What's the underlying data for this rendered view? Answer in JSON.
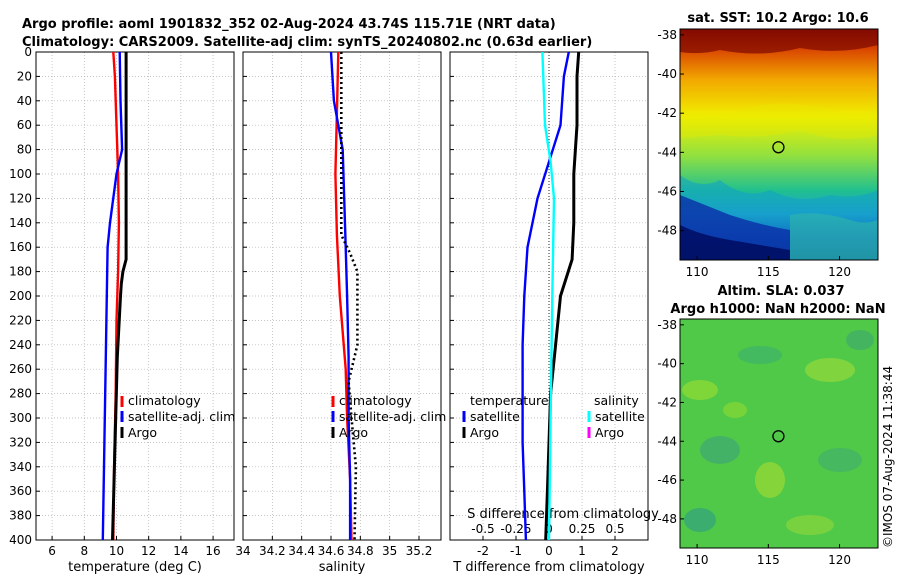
{
  "header": {
    "line1": "Argo profile: aoml 1901832_352 02-Aug-2024 43.74S 115.71E (NRT data)",
    "line2": "Climatology: CARS2009. Satellite-adj clim: synTS_20240802.nc (0.63d earlier)"
  },
  "timestamp": "©IMOS 07-Aug-2024 11:38:44",
  "colors": {
    "climatology": "#ff0000",
    "satellite": "#0000ff",
    "argo": "#000000",
    "satellite_salinity": "#00ffff",
    "argo_salinity": "#ff00ff"
  },
  "chart_data": [
    {
      "type": "line",
      "title": "",
      "xlabel": "temperature (deg C)",
      "ylabel": "",
      "xlim": [
        5,
        17.3
      ],
      "ylim": [
        400,
        0
      ],
      "xticks": [
        6,
        8,
        10,
        12,
        14,
        16
      ],
      "yticks": [
        0,
        20,
        40,
        60,
        80,
        100,
        120,
        140,
        160,
        180,
        200,
        220,
        240,
        260,
        280,
        300,
        320,
        340,
        360,
        380,
        400
      ],
      "legend": [
        "climatology",
        "satellite-adj. clim",
        "Argo"
      ],
      "series": [
        {
          "name": "climatology",
          "style": "solid",
          "depth": [
            0,
            20,
            60,
            100,
            140,
            180,
            220,
            280,
            340,
            400
          ],
          "values": [
            9.8,
            9.9,
            10.0,
            10.1,
            10.15,
            10.1,
            10.0,
            9.95,
            9.85,
            9.8
          ]
        },
        {
          "name": "satellite-adj. clim",
          "style": "solid",
          "depth": [
            0,
            40,
            80,
            100,
            140,
            160,
            200,
            240,
            280,
            320,
            360,
            400
          ],
          "values": [
            10.2,
            10.25,
            10.35,
            10.0,
            9.6,
            9.45,
            9.4,
            9.35,
            9.3,
            9.25,
            9.2,
            9.15
          ]
        },
        {
          "name": "Argo",
          "style": "thick",
          "depth": [
            0,
            20,
            100,
            170,
            180,
            190,
            200,
            250,
            300,
            350,
            400
          ],
          "values": [
            10.6,
            10.6,
            10.6,
            10.6,
            10.4,
            10.3,
            10.25,
            10.05,
            9.95,
            9.85,
            9.75
          ]
        }
      ]
    },
    {
      "type": "line",
      "title": "",
      "xlabel": "salinity",
      "ylabel": "",
      "xlim": [
        34.0,
        35.35
      ],
      "ylim": [
        400,
        0
      ],
      "xticks": [
        34,
        34.2,
        34.4,
        34.6,
        34.8,
        35,
        35.2
      ],
      "yticks": [
        0,
        20,
        40,
        60,
        80,
        100,
        120,
        140,
        160,
        180,
        200,
        220,
        240,
        260,
        280,
        300,
        320,
        340,
        360,
        380,
        400
      ],
      "legend": [
        "climatology",
        "satellite-adj. clim",
        "Argo"
      ],
      "series": [
        {
          "name": "climatology",
          "style": "solid",
          "depth": [
            0,
            50,
            100,
            150,
            200,
            260,
            300,
            350,
            400
          ],
          "values": [
            34.65,
            34.64,
            34.63,
            34.64,
            34.66,
            34.7,
            34.71,
            34.73,
            34.74
          ]
        },
        {
          "name": "satellite-adj. clim",
          "style": "solid",
          "depth": [
            0,
            40,
            80,
            120,
            160,
            200,
            250,
            300,
            350,
            400
          ],
          "values": [
            34.6,
            34.62,
            34.68,
            34.69,
            34.7,
            34.71,
            34.72,
            34.72,
            34.73,
            34.73
          ]
        },
        {
          "name": "Argo",
          "style": "dotted",
          "depth": [
            0,
            150,
            165,
            180,
            200,
            240,
            270,
            300,
            340,
            400
          ],
          "values": [
            34.67,
            34.67,
            34.73,
            34.78,
            34.78,
            34.78,
            34.72,
            34.74,
            34.77,
            34.76
          ]
        }
      ]
    },
    {
      "type": "line",
      "title": "",
      "xlabel": "T difference from climatology",
      "xlabel_top": "S difference from climatology",
      "ylabel": "",
      "xlim": [
        -3,
        3
      ],
      "ylim": [
        400,
        0
      ],
      "xticks": [
        -2,
        -1,
        0,
        1,
        2
      ],
      "xticks_top": [
        "-0.5",
        "-0.25",
        "0",
        "0.25",
        "0.5"
      ],
      "yticks": [
        0,
        20,
        40,
        60,
        80,
        100,
        120,
        140,
        160,
        180,
        200,
        220,
        240,
        260,
        280,
        300,
        320,
        340,
        360,
        380,
        400
      ],
      "legend_left_title": "temperature",
      "legend_left": [
        "satellite",
        "Argo"
      ],
      "legend_right_title": "salinity",
      "legend_right": [
        "satellite",
        "Argo"
      ],
      "series": [
        {
          "name": "temperature satellite",
          "style": "solid",
          "depth": [
            0,
            20,
            60,
            90,
            120,
            160,
            200,
            240,
            280,
            320,
            360,
            400
          ],
          "values": [
            0.6,
            0.45,
            0.35,
            0.0,
            -0.35,
            -0.65,
            -0.75,
            -0.8,
            -0.8,
            -0.8,
            -0.75,
            -0.7
          ]
        },
        {
          "name": "temperature Argo",
          "style": "thick",
          "depth": [
            0,
            20,
            60,
            100,
            140,
            170,
            200,
            240,
            280,
            320,
            360,
            400
          ],
          "values": [
            0.9,
            0.85,
            0.85,
            0.75,
            0.75,
            0.7,
            0.35,
            0.2,
            0.05,
            0.0,
            -0.05,
            -0.1
          ]
        },
        {
          "name": "salinity satellite",
          "style": "solid",
          "depth": [
            0,
            60,
            90,
            120,
            200,
            300,
            400
          ],
          "values": [
            -0.2,
            -0.12,
            0.05,
            0.15,
            0.1,
            0.05,
            0.0
          ]
        }
      ]
    },
    {
      "type": "heatmap",
      "title": "sat. SST: 10.2 Argo: 10.6",
      "xticks": [
        110,
        115,
        120
      ],
      "yticks": [
        -38,
        -40,
        -42,
        -44,
        -46,
        -48
      ],
      "xlim": [
        108.8,
        122.7
      ],
      "ylim": [
        -49.5,
        -37.7
      ],
      "marker": {
        "lon": 115.71,
        "lat": -43.74
      }
    },
    {
      "type": "heatmap",
      "title": "Altim. SLA: 0.037",
      "subtitle": "Argo h1000: NaN h2000: NaN",
      "xticks": [
        110,
        115,
        120
      ],
      "yticks": [
        -38,
        -40,
        -42,
        -44,
        -46,
        -48
      ],
      "xlim": [
        108.8,
        122.7
      ],
      "ylim": [
        -49.5,
        -37.7
      ],
      "marker": {
        "lon": 115.71,
        "lat": -43.74
      }
    }
  ]
}
